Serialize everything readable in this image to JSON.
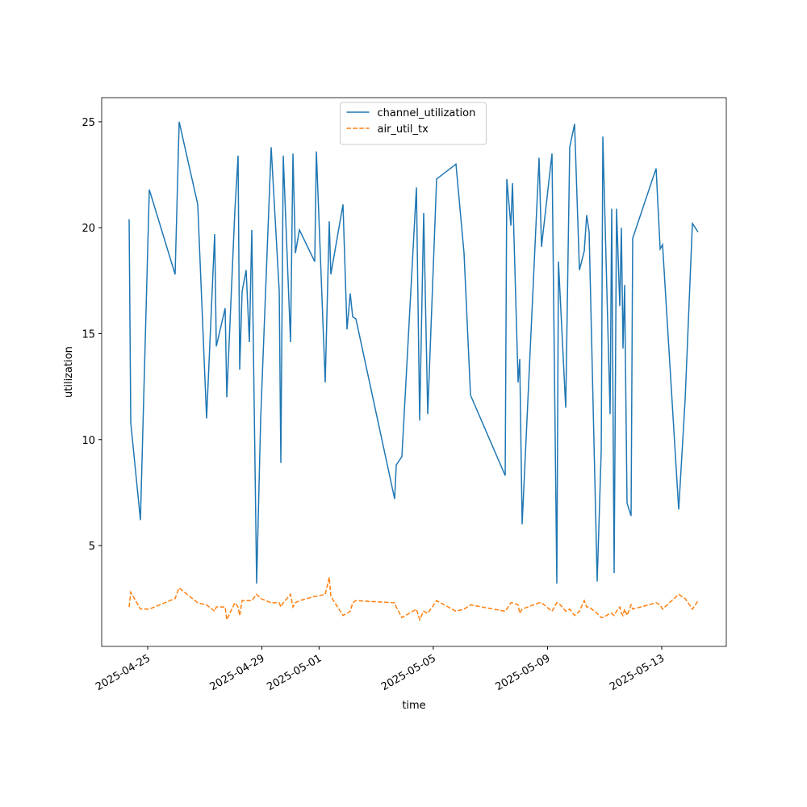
{
  "chart_data": {
    "type": "line",
    "x_label": "time",
    "y_label": "utilization",
    "x": [
      "2025-04-24 08:24",
      "2025-04-24 09:46",
      "2025-04-24 17:54",
      "2025-04-25 01:21",
      "2025-04-25 23:03",
      "2025-04-26 02:27",
      "2025-04-26 18:03",
      "2025-04-27 01:30",
      "2025-04-27 08:17",
      "2025-04-27 09:39",
      "2025-04-27 17:06",
      "2025-04-27 18:28",
      "2025-04-28 01:15",
      "2025-04-28 03:58",
      "2025-04-28 05:19",
      "2025-04-28 07:21",
      "2025-04-28 10:44",
      "2025-04-28 13:27",
      "2025-04-28 15:29",
      "2025-04-28 19:33",
      "2025-04-28 22:57",
      "2025-04-29 07:46",
      "2025-04-29 14:33",
      "2025-04-29 15:54",
      "2025-04-29 17:56",
      "2025-04-30 00:02",
      "2025-04-30 02:05",
      "2025-04-30 04:07",
      "2025-04-30 07:30",
      "2025-04-30 20:23",
      "2025-04-30 21:45",
      "2025-05-01 05:12",
      "2025-05-01 08:35",
      "2025-05-01 09:56",
      "2025-05-01 20:07",
      "2025-05-01 23:30",
      "2025-05-02 02:13",
      "2025-05-02 04:15",
      "2025-05-02 06:58",
      "2025-05-03 15:32",
      "2025-05-03 16:53",
      "2025-05-03 21:38",
      "2025-05-04 09:50",
      "2025-05-04 12:33",
      "2025-05-04 15:56",
      "2025-05-04 19:20",
      "2025-05-05 02:48",
      "2025-05-05 19:04",
      "2025-05-06 01:51",
      "2025-05-06 07:17",
      "2025-05-07 12:27",
      "2025-05-07 13:48",
      "2025-05-07 17:12",
      "2025-05-07 18:33",
      "2025-05-07 23:18",
      "2025-05-08 00:39",
      "2025-05-08 02:41",
      "2025-05-08 16:55",
      "2025-05-08 18:57",
      "2025-05-09 03:46",
      "2025-05-09 07:50",
      "2025-05-09 09:12",
      "2025-05-09 15:18",
      "2025-05-09 18:41",
      "2025-05-09 22:45",
      "2025-05-10 02:49",
      "2025-05-10 06:53",
      "2025-05-10 08:55",
      "2025-05-10 10:58",
      "2025-05-10 17:45",
      "2025-05-10 21:09",
      "2025-05-10 22:30",
      "2025-05-11 04:36",
      "2025-05-11 05:57",
      "2025-05-11 07:59",
      "2025-05-11 10:01",
      "2025-05-11 12:44",
      "2025-05-11 14:05",
      "2025-05-11 15:27",
      "2025-05-11 16:48",
      "2025-05-11 18:50",
      "2025-05-11 22:14",
      "2025-05-11 23:35",
      "2025-05-12 19:16",
      "2025-05-12 22:39",
      "2025-05-13 00:41",
      "2025-05-13 14:15",
      "2025-05-13 19:40",
      "2025-05-14 01:46",
      "2025-05-14 06:31"
    ],
    "series": [
      {
        "name": "channel_utilization",
        "color": "#1f77b4",
        "dash": "solid",
        "values": [
          20.4,
          10.8,
          6.2,
          21.8,
          17.8,
          25,
          21.1,
          11,
          19.7,
          14.4,
          16.2,
          12,
          20.8,
          23.4,
          13.3,
          17,
          18,
          14.6,
          19.9,
          3.2,
          11,
          23.8,
          17,
          8.9,
          23.4,
          14.6,
          23.5,
          18.8,
          19.9,
          18.4,
          23.6,
          12.7,
          20.3,
          17.8,
          21.1,
          15.2,
          16.9,
          15.8,
          15.7,
          7.2,
          8.8,
          9.2,
          21.9,
          10.9,
          20.7,
          11.2,
          22.3,
          23,
          18.8,
          12.1,
          8.3,
          22.3,
          20.1,
          22.1,
          12.7,
          13.8,
          6,
          23.3,
          19.1,
          23.5,
          3.2,
          18.4,
          11.5,
          23.8,
          24.9,
          18,
          18.9,
          20.6,
          19.8,
          3.3,
          9.5,
          24.3,
          11.2,
          20.9,
          3.7,
          20.9,
          16.3,
          20,
          14.3,
          17.3,
          7,
          6.4,
          19.5,
          22.8,
          19,
          19.2,
          6.7,
          11.9,
          20.2,
          19.8
        ]
      },
      {
        "name": "air_util_tx",
        "color": "#ff7f0e",
        "dash": "dashed",
        "values": [
          2.1,
          2.8,
          2,
          2,
          2.5,
          3,
          2.3,
          2.2,
          1.9,
          2.1,
          2.1,
          1.5,
          2.3,
          2.1,
          1.7,
          2.4,
          2.4,
          2.4,
          2.4,
          2.7,
          2.5,
          2.3,
          2.3,
          2.1,
          2.3,
          2.7,
          2.1,
          2.3,
          2.4,
          2.6,
          2.6,
          2.7,
          3.5,
          2.6,
          1.7,
          1.8,
          1.9,
          2.3,
          2.4,
          2.3,
          2.1,
          1.6,
          2,
          1.5,
          1.9,
          1.8,
          2.4,
          1.9,
          2,
          2.2,
          1.9,
          2,
          2.3,
          2.3,
          2.2,
          1.8,
          2,
          2.3,
          2.3,
          1.9,
          2.3,
          2.3,
          1.9,
          2,
          1.7,
          1.9,
          2.4,
          2.1,
          2.1,
          1.8,
          1.6,
          1.6,
          1.8,
          1.8,
          1.7,
          1.9,
          2.1,
          1.8,
          1.7,
          2,
          1.7,
          2.2,
          2,
          2.3,
          2.2,
          2,
          2.7,
          2.5,
          2,
          2.4
        ]
      }
    ],
    "xlim": [
      "2025-04-23 09:20",
      "2025-05-15 06:15"
    ],
    "xticks": [
      "2025-04-25",
      "2025-04-29",
      "2025-05-01",
      "2025-05-05",
      "2025-05-09",
      "2025-05-13"
    ],
    "ylim": [
      0.24,
      26.14
    ],
    "yticks": [
      5,
      10,
      15,
      20,
      25
    ],
    "grid": false,
    "legend": "upper center"
  }
}
